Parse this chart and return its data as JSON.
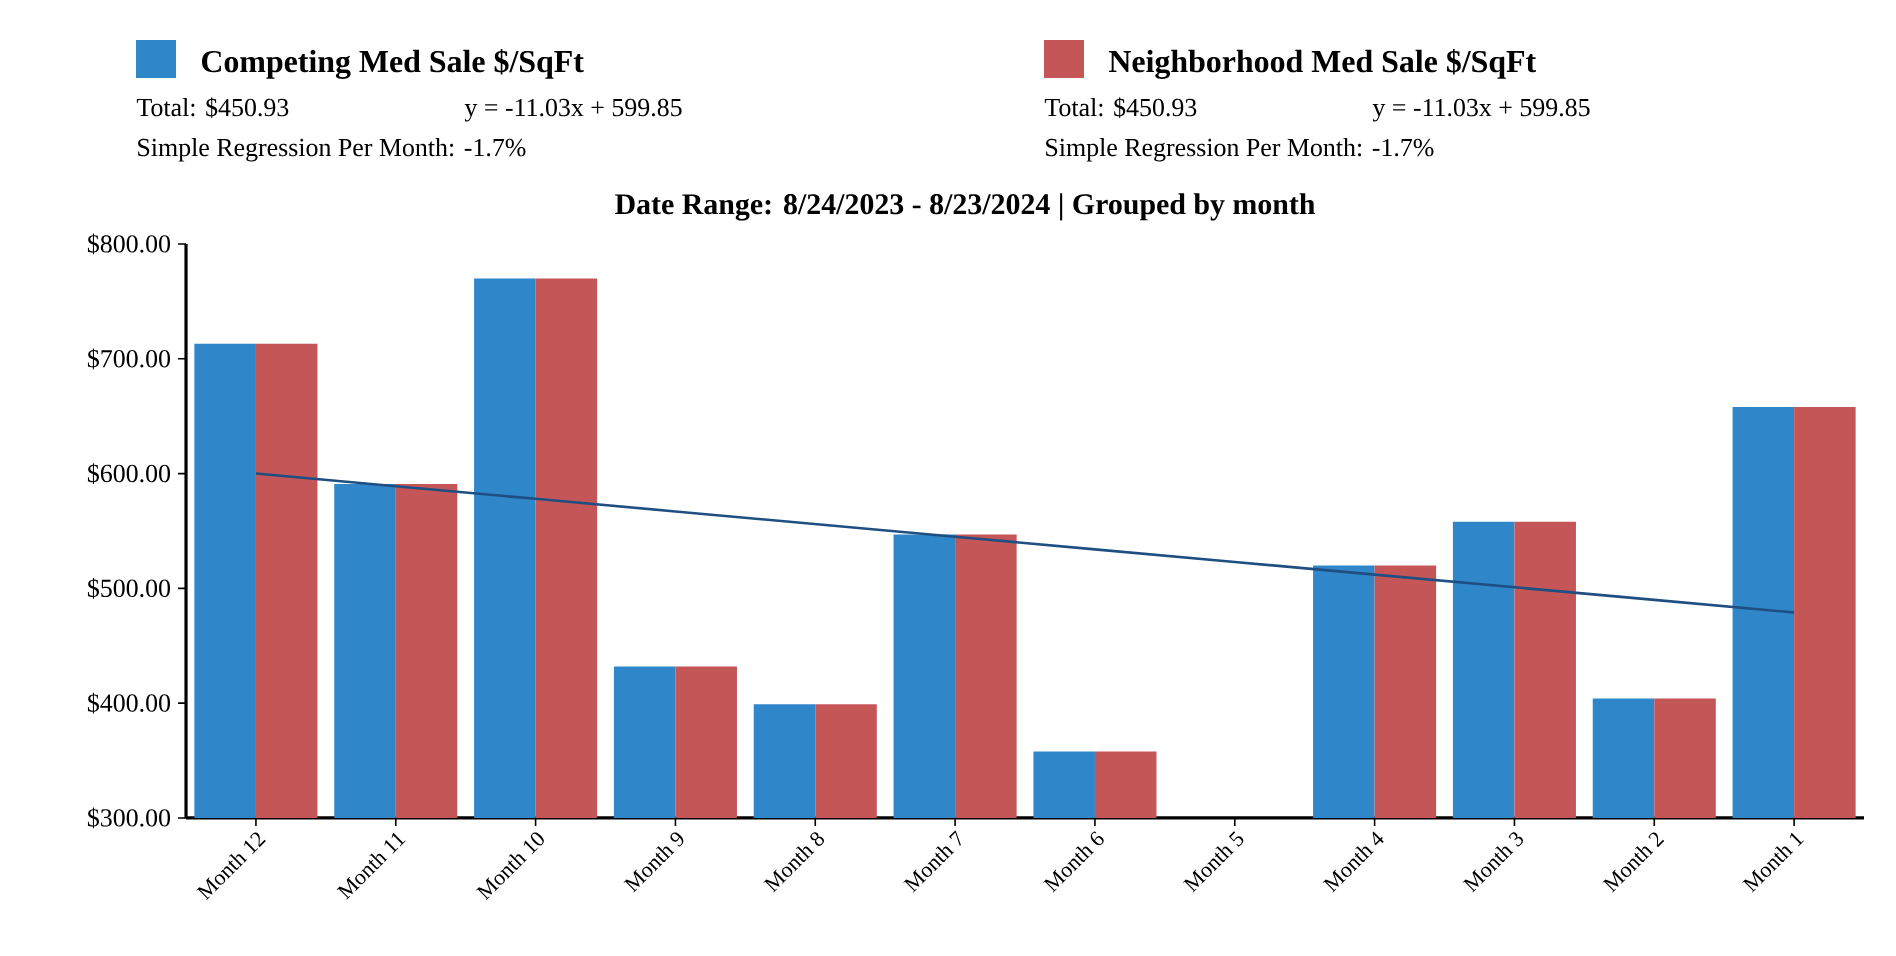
{
  "chart_data": {
    "type": "bar",
    "title": "Date Range: 8/24/2023 - 8/23/2024 | Grouped by month",
    "categories": [
      "Month 12",
      "Month 11",
      "Month 10",
      "Month 9",
      "Month 8",
      "Month 7",
      "Month 6",
      "Month 5",
      "Month 4",
      "Month 3",
      "Month 2",
      "Month 1"
    ],
    "series": [
      {
        "name": "Competing Med Sale $/SqFt",
        "color": "#2f86c8",
        "values": [
          713,
          591,
          770,
          432,
          399,
          547,
          358,
          null,
          520,
          558,
          404,
          658
        ]
      },
      {
        "name": "Neighborhood Med Sale $/SqFt",
        "color": "#c45658",
        "values": [
          713,
          591,
          770,
          432,
          399,
          547,
          358,
          null,
          520,
          558,
          404,
          658
        ]
      },
      {
        "type": "line",
        "color": "#1f4f82",
        "values": [
          600,
          589,
          578,
          567,
          556,
          545,
          534,
          523,
          512,
          501,
          490,
          479
        ]
      }
    ],
    "ylim": [
      300,
      800
    ],
    "yticks": [
      {
        "value": 300,
        "label": "$300.00"
      },
      {
        "value": 400,
        "label": "$400.00"
      },
      {
        "value": 500,
        "label": "$500.00"
      },
      {
        "value": 600,
        "label": "$600.00"
      },
      {
        "value": 700,
        "label": "$700.00"
      },
      {
        "value": 800,
        "label": "$800.00"
      }
    ],
    "legend": "top",
    "grid": false,
    "annotations": [
      "Total: $450.93",
      "y = -11.03x + 599.85",
      "Simple Regression Per Month: -1.7%",
      "Total: $450.93",
      "y = -11.03x + 599.85",
      "Simple Regression Per Month: -1.7%"
    ]
  }
}
